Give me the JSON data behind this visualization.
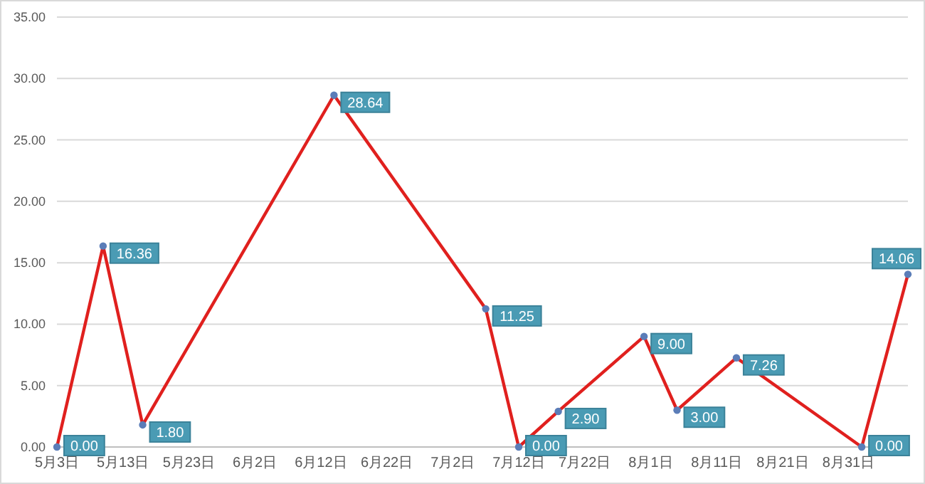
{
  "chart_data": {
    "type": "line",
    "x": [
      "--05-03",
      "--05-10",
      "--05-16",
      "--06-14",
      "--07-07",
      "--07-12",
      "--07-18",
      "--07-31",
      "--08-05",
      "--08-14",
      "--09-02",
      "--09-09"
    ],
    "series": [
      {
        "color": "#e0201e",
        "values": [
          0,
          16.36,
          1.8,
          28.64,
          11.25,
          0,
          2.9,
          9.0,
          3.0,
          7.26,
          0,
          14.06
        ],
        "value_labels": [
          "0.00",
          "16.36",
          "1.80",
          "28.64",
          "11.25",
          "0.00",
          "2.90",
          "9.00",
          "3.00",
          "7.26",
          "0.00",
          "14.06"
        ]
      }
    ],
    "xlim": [
      "--05-03",
      "--09-09"
    ],
    "xticks": [
      {
        "value": "--05-03",
        "label": "5月3日"
      },
      {
        "value": "--05-13",
        "label": "5月13日"
      },
      {
        "value": "--05-23",
        "label": "5月23日"
      },
      {
        "value": "--06-02",
        "label": "6月2日"
      },
      {
        "value": "--06-12",
        "label": "6月12日"
      },
      {
        "value": "--06-22",
        "label": "6月22日"
      },
      {
        "value": "--07-02",
        "label": "7月2日"
      },
      {
        "value": "--07-12",
        "label": "7月12日"
      },
      {
        "value": "--07-22",
        "label": "7月22日"
      },
      {
        "value": "--08-01",
        "label": "8月1日"
      },
      {
        "value": "--08-11",
        "label": "8月11日"
      },
      {
        "value": "--08-21",
        "label": "8月21日"
      },
      {
        "value": "--08-31",
        "label": "8月31日"
      }
    ],
    "ylim": [
      0,
      35
    ],
    "yticks": [
      {
        "value": 0,
        "label": "0.00"
      },
      {
        "value": 5,
        "label": "5.00"
      },
      {
        "value": 10,
        "label": "10.00"
      },
      {
        "value": 15,
        "label": "15.00"
      },
      {
        "value": 20,
        "label": "20.00"
      },
      {
        "value": 25,
        "label": "25.00"
      },
      {
        "value": 30,
        "label": "30.00"
      },
      {
        "value": 35,
        "label": "35.00"
      }
    ],
    "grid": "y",
    "marker": "circle",
    "line_style": "solid"
  }
}
